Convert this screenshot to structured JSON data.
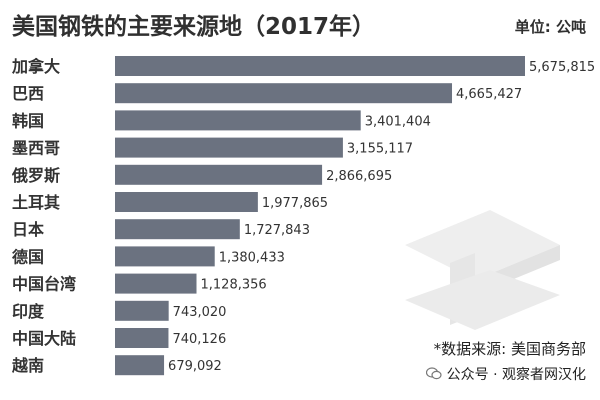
{
  "title": "美国钢铁的主要来源地（2017年）",
  "unit_label": "单位: 公吨",
  "source_note": "*数据来源: 美国商务部",
  "watermark": "公众号 · 观察者网汉化",
  "colors": {
    "bar": "#6b7280",
    "bar_text": "#ffffff",
    "label_text": "#333333",
    "value_text": "#333333",
    "title_text": "#303030"
  },
  "icons": [
    "steel-ibeam-icon",
    "wechat-icon"
  ],
  "chart_data": {
    "type": "bar",
    "orientation": "horizontal",
    "title": "美国钢铁的主要来源地（2017年）",
    "ylabel": "单位: 公吨",
    "categories": [
      "加拿大",
      "巴西",
      "韩国",
      "墨西哥",
      "俄罗斯",
      "土耳其",
      "日本",
      "德国",
      "中国台湾",
      "印度",
      "中国大陆",
      "越南"
    ],
    "values": [
      5675815,
      4665427,
      3401404,
      3155117,
      2866695,
      1977865,
      1727843,
      1380433,
      1128356,
      743020,
      740126,
      679092
    ],
    "value_labels": [
      "5,675,815",
      "4,665,427",
      "3,401,404",
      "3,155,117",
      "2,866,695",
      "1,977,865",
      "1,727,843",
      "1,380,433",
      "1,128,356",
      "743,020",
      "740,126",
      "679,092"
    ],
    "grid": false,
    "legend": "none"
  }
}
